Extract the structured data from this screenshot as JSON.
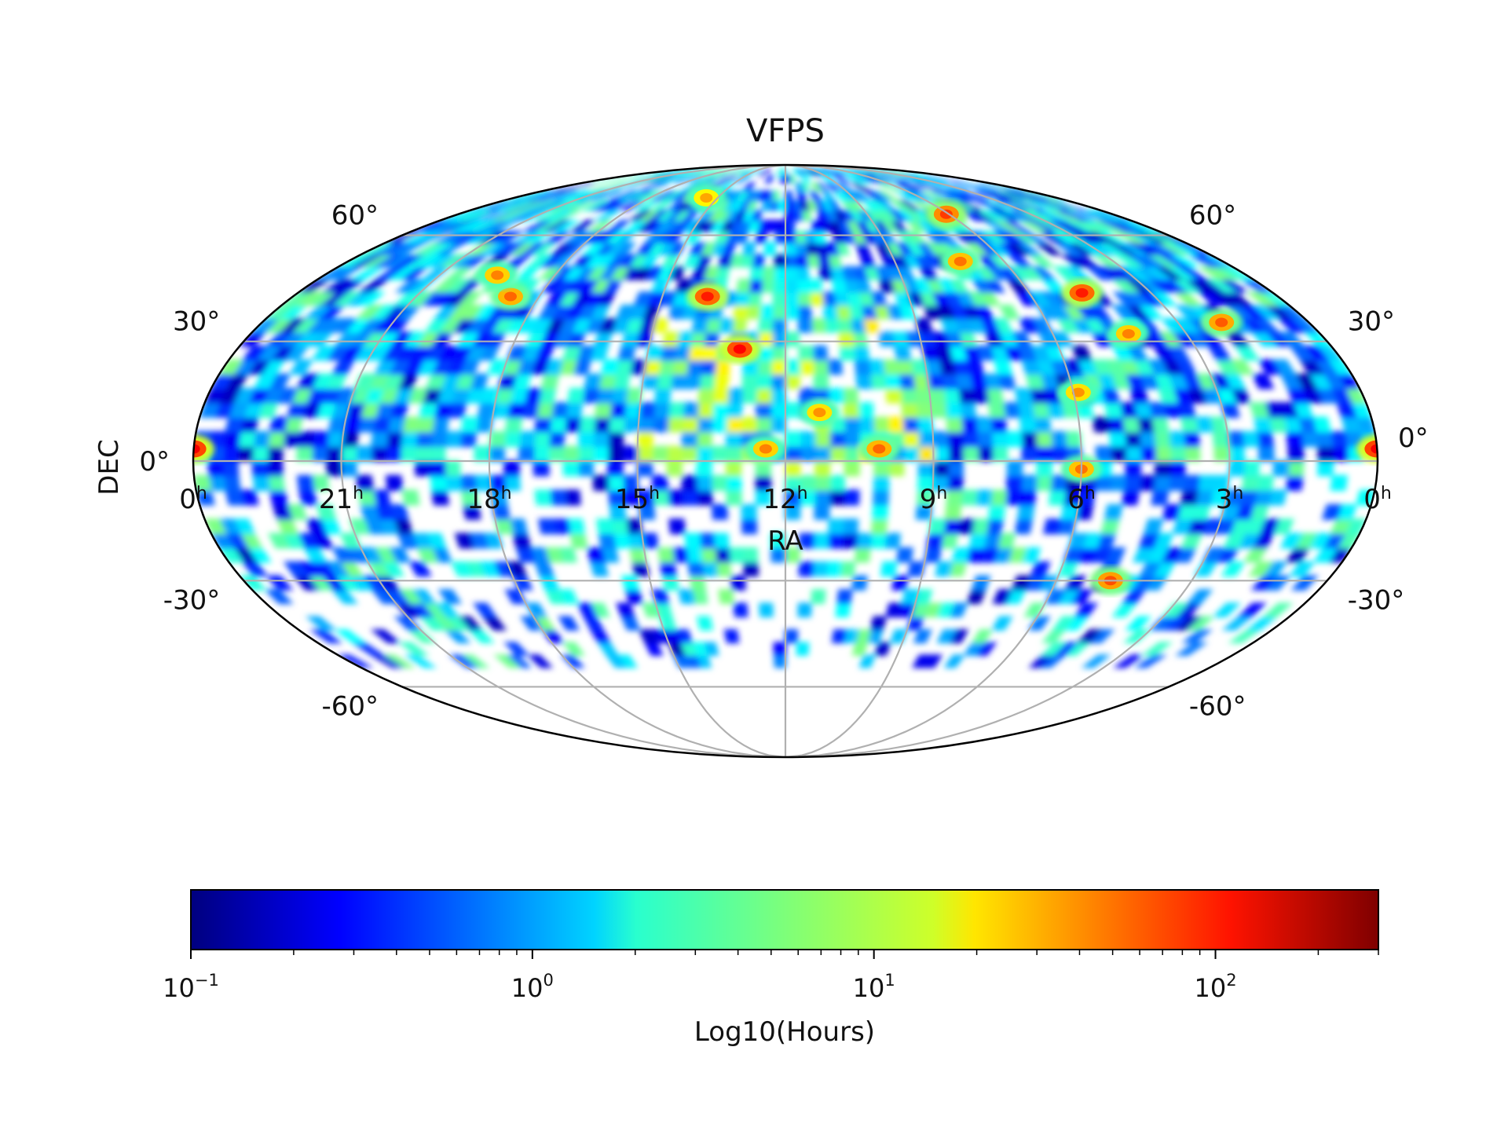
{
  "chart_data": {
    "type": "heatmap",
    "projection": "mollweide",
    "title": "VFPS",
    "xlabel": "RA",
    "ylabel": "DEC",
    "ra_ticks": [
      {
        "value": 0,
        "base": "0",
        "sup": "h"
      },
      {
        "value": 21,
        "base": "21",
        "sup": "h"
      },
      {
        "value": 18,
        "base": "18",
        "sup": "h"
      },
      {
        "value": 15,
        "base": "15",
        "sup": "h"
      },
      {
        "value": 12,
        "base": "12",
        "sup": "h"
      },
      {
        "value": 9,
        "base": "9",
        "sup": "h"
      },
      {
        "value": 6,
        "base": "6",
        "sup": "h"
      },
      {
        "value": 3,
        "base": "3",
        "sup": "h"
      },
      {
        "value": 0,
        "base": "0",
        "sup": "h"
      }
    ],
    "dec_ticks": [
      {
        "value": 60,
        "text": "60°"
      },
      {
        "value": 30,
        "text": "30°"
      },
      {
        "value": 0,
        "text": "0°"
      },
      {
        "value": -30,
        "text": "-30°"
      },
      {
        "value": -60,
        "text": "-60°"
      }
    ],
    "grid": true,
    "colormap": "jet",
    "colorbar": {
      "label": "Log10(Hours)",
      "orientation": "horizontal",
      "placement": "bottom",
      "scale": "log",
      "range": [
        0.1,
        300
      ],
      "ticks": [
        {
          "value": 0.1,
          "base": "10",
          "sup": "−1"
        },
        {
          "value": 1,
          "base": "10",
          "sup": "0"
        },
        {
          "value": 10,
          "base": "10",
          "sup": "1"
        },
        {
          "value": 100,
          "base": "10",
          "sup": "2"
        }
      ]
    },
    "hotspots": [
      {
        "ra": 0.0,
        "dec": 3,
        "hours": 120
      },
      {
        "ra": 24.0,
        "dec": 3,
        "hours": 120
      },
      {
        "ra": 13.9,
        "dec": 42,
        "hours": 90
      },
      {
        "ra": 13.0,
        "dec": 28,
        "hours": 110
      },
      {
        "ra": 11.3,
        "dec": 12,
        "hours": 35
      },
      {
        "ra": 12.4,
        "dec": 3,
        "hours": 40
      },
      {
        "ra": 10.1,
        "dec": 3,
        "hours": 50
      },
      {
        "ra": 18.7,
        "dec": 42,
        "hours": 50
      },
      {
        "ra": 19.5,
        "dec": 48,
        "hours": 40
      },
      {
        "ra": 6.1,
        "dec": 67,
        "hours": 70
      },
      {
        "ra": 7.2,
        "dec": 52,
        "hours": 45
      },
      {
        "ra": 4.7,
        "dec": 43,
        "hours": 90
      },
      {
        "ra": 2.0,
        "dec": 35,
        "hours": 55
      },
      {
        "ra": 4.3,
        "dec": 32,
        "hours": 40
      },
      {
        "ra": 5.9,
        "dec": 17,
        "hours": 35
      },
      {
        "ra": 6.0,
        "dec": -2,
        "hours": 45
      },
      {
        "ra": 4.8,
        "dec": -30,
        "hours": 60
      },
      {
        "ra": 15.5,
        "dec": 73,
        "hours": 30
      }
    ]
  }
}
